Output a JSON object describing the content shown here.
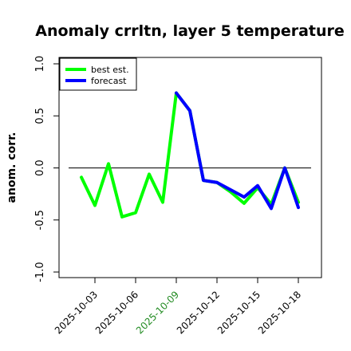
{
  "chart_data": {
    "type": "line",
    "title": "Anomaly crrltn, layer 5 temperature",
    "ylabel": "anom. corr.",
    "xlabel": "",
    "ylim": [
      -1.0,
      1.0
    ],
    "yticks": [
      {
        "value": -1.0,
        "label": "-1.0"
      },
      {
        "value": -0.5,
        "label": "-0.5"
      },
      {
        "value": 0.0,
        "label": "0.0"
      },
      {
        "value": 0.5,
        "label": "0.5"
      },
      {
        "value": 1.0,
        "label": "1.0"
      }
    ],
    "x": [
      "2025-10-02",
      "2025-10-03",
      "2025-10-04",
      "2025-10-05",
      "2025-10-06",
      "2025-10-07",
      "2025-10-08",
      "2025-10-09",
      "2025-10-10",
      "2025-10-11",
      "2025-10-12",
      "2025-10-13",
      "2025-10-14",
      "2025-10-15",
      "2025-10-16",
      "2025-10-17",
      "2025-10-18"
    ],
    "xticks": [
      {
        "value": "2025-10-03",
        "label": "2025-10-03",
        "color": "#000000"
      },
      {
        "value": "2025-10-06",
        "label": "2025-10-06",
        "color": "#000000"
      },
      {
        "value": "2025-10-09",
        "label": "2025-10-09",
        "color": "#228b22"
      },
      {
        "value": "2025-10-12",
        "label": "2025-10-12",
        "color": "#000000"
      },
      {
        "value": "2025-10-15",
        "label": "2025-10-15",
        "color": "#000000"
      },
      {
        "value": "2025-10-18",
        "label": "2025-10-18",
        "color": "#000000"
      }
    ],
    "series": [
      {
        "name": "best est.",
        "color": "#00ff00",
        "x": [
          "2025-10-02",
          "2025-10-03",
          "2025-10-04",
          "2025-10-05",
          "2025-10-06",
          "2025-10-07",
          "2025-10-08",
          "2025-10-09",
          "2025-10-10",
          "2025-10-11",
          "2025-10-12",
          "2025-10-13",
          "2025-10-14",
          "2025-10-15",
          "2025-10-16",
          "2025-10-17",
          "2025-10-18"
        ],
        "values": [
          -0.09,
          -0.36,
          0.04,
          -0.47,
          -0.43,
          -0.06,
          -0.33,
          0.72,
          0.55,
          -0.12,
          -0.14,
          -0.23,
          -0.34,
          -0.19,
          -0.35,
          0.0,
          -0.33
        ]
      },
      {
        "name": "forecast",
        "color": "#0000ff",
        "x": [
          "2025-10-09",
          "2025-10-10",
          "2025-10-11",
          "2025-10-12",
          "2025-10-13",
          "2025-10-14",
          "2025-10-15",
          "2025-10-16",
          "2025-10-17",
          "2025-10-18"
        ],
        "values": [
          0.72,
          0.55,
          -0.12,
          -0.14,
          -0.21,
          -0.28,
          -0.17,
          -0.39,
          0.0,
          -0.38
        ]
      }
    ],
    "reference_line": 0.0,
    "grid": false,
    "legend": "top-left"
  }
}
